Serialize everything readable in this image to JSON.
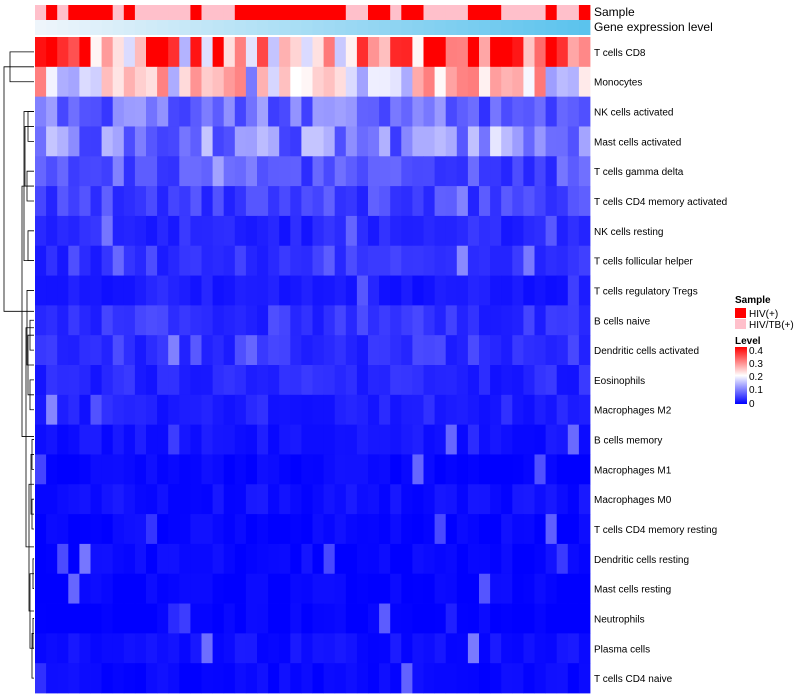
{
  "chart_data": {
    "type": "heatmap",
    "title": "",
    "rows": [
      "T cells CD8",
      "Monocytes",
      "NK cells activated",
      "Mast cells activated",
      "T cells gamma delta",
      "T cells CD4 memory activated",
      "NK cells resting",
      "T cells follicular helper",
      "T cells regulatory  Tregs",
      "B cells naive",
      "Dendritic cells activated",
      "Eosinophils",
      "Macrophages M2",
      "B cells memory",
      "Macrophages M1",
      "Macrophages M0",
      "T cells CD4 memory resting",
      "Dendritic cells resting",
      "Mast cells resting",
      "Neutrophils",
      "Plasma cells",
      "T cells CD4 naive"
    ],
    "n_columns": 50,
    "column_annotations": {
      "sample_label": "Sample",
      "gene_label": "Gene expression level",
      "sample_groups": [
        "HIV/TB(+)",
        "HIV(+)",
        "HIV/TB(+)",
        "HIV(+)",
        "HIV(+)",
        "HIV(+)",
        "HIV(+)",
        "HIV/TB(+)",
        "HIV(+)",
        "HIV/TB(+)",
        "HIV/TB(+)",
        "HIV/TB(+)",
        "HIV/TB(+)",
        "HIV/TB(+)",
        "HIV(+)",
        "HIV/TB(+)",
        "HIV/TB(+)",
        "HIV/TB(+)",
        "HIV(+)",
        "HIV(+)",
        "HIV(+)",
        "HIV(+)",
        "HIV(+)",
        "HIV(+)",
        "HIV(+)",
        "HIV(+)",
        "HIV(+)",
        "HIV(+)",
        "HIV/TB(+)",
        "HIV/TB(+)",
        "HIV(+)",
        "HIV(+)",
        "HIV/TB(+)",
        "HIV(+)",
        "HIV(+)",
        "HIV/TB(+)",
        "HIV/TB(+)",
        "HIV/TB(+)",
        "HIV/TB(+)",
        "HIV(+)",
        "HIV(+)",
        "HIV(+)",
        "HIV/TB(+)",
        "HIV/TB(+)",
        "HIV/TB(+)",
        "HIV/TB(+)",
        "HIV(+)",
        "HIV/TB(+)",
        "HIV/TB(+)",
        "HIV(+)"
      ],
      "gene_level_gradient": [
        "#eef5fb",
        "#5bc3ed"
      ]
    },
    "mean_levels": [
      0.3,
      0.2,
      0.08,
      0.1,
      0.06,
      0.05,
      0.03,
      0.04,
      0.02,
      0.04,
      0.04,
      0.03,
      0.025,
      0.015,
      0.005,
      0.012,
      0.004,
      0.004,
      0.001,
      0.0,
      0.012,
      0.005
    ],
    "value_range": [
      0,
      0.4
    ],
    "legend": {
      "sample_title": "Sample",
      "sample_entries": [
        {
          "label": "HIV(+)",
          "color": "#ff0000"
        },
        {
          "label": "HIV/TB(+)",
          "color": "#ffc0cb"
        }
      ],
      "level_title": "Level",
      "level_ticks": [
        "0.4",
        "0.3",
        "0.2",
        "0.1",
        "0"
      ],
      "level_colors": [
        "#0000ff",
        "#ffffff",
        "#ff0000"
      ]
    }
  }
}
